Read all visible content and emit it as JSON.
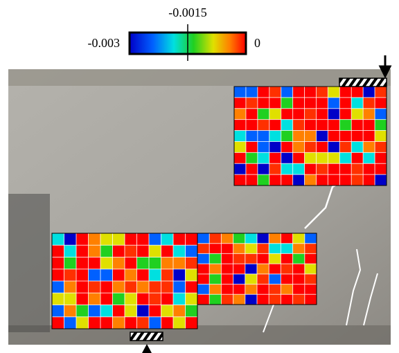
{
  "colorbar": {
    "ticks": [
      -0.003,
      -0.0015,
      0
    ]
  }
}
